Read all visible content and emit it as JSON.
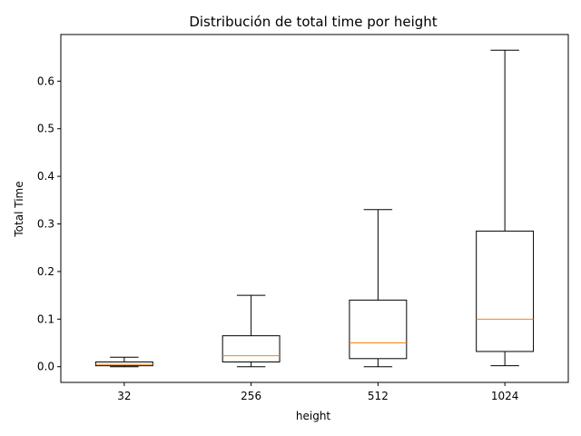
{
  "chart_data": {
    "type": "boxplot",
    "title": "Distribución de total time por height",
    "xlabel": "height",
    "ylabel": "Total Time",
    "categories": [
      "32",
      "256",
      "512",
      "1024"
    ],
    "ylim": [
      -0.033,
      0.698
    ],
    "yticks": [
      0.0,
      0.1,
      0.2,
      0.3,
      0.4,
      0.5,
      0.6
    ],
    "ytick_labels": [
      "0.0",
      "0.1",
      "0.2",
      "0.3",
      "0.4",
      "0.5",
      "0.6"
    ],
    "boxes": [
      {
        "category": "32",
        "whisker_low": 0.0,
        "q1": 0.002,
        "median": 0.005,
        "q3": 0.01,
        "whisker_high": 0.02
      },
      {
        "category": "256",
        "whisker_low": 0.0,
        "q1": 0.01,
        "median": 0.023,
        "q3": 0.065,
        "whisker_high": 0.15
      },
      {
        "category": "512",
        "whisker_low": 0.0,
        "q1": 0.017,
        "median": 0.05,
        "q3": 0.14,
        "whisker_high": 0.33
      },
      {
        "category": "1024",
        "whisker_low": 0.002,
        "q1": 0.032,
        "median": 0.1,
        "q3": 0.285,
        "whisker_high": 0.665
      }
    ],
    "colors": {
      "box": "#000000",
      "median": "#ff7f0e"
    },
    "grid": false
  }
}
